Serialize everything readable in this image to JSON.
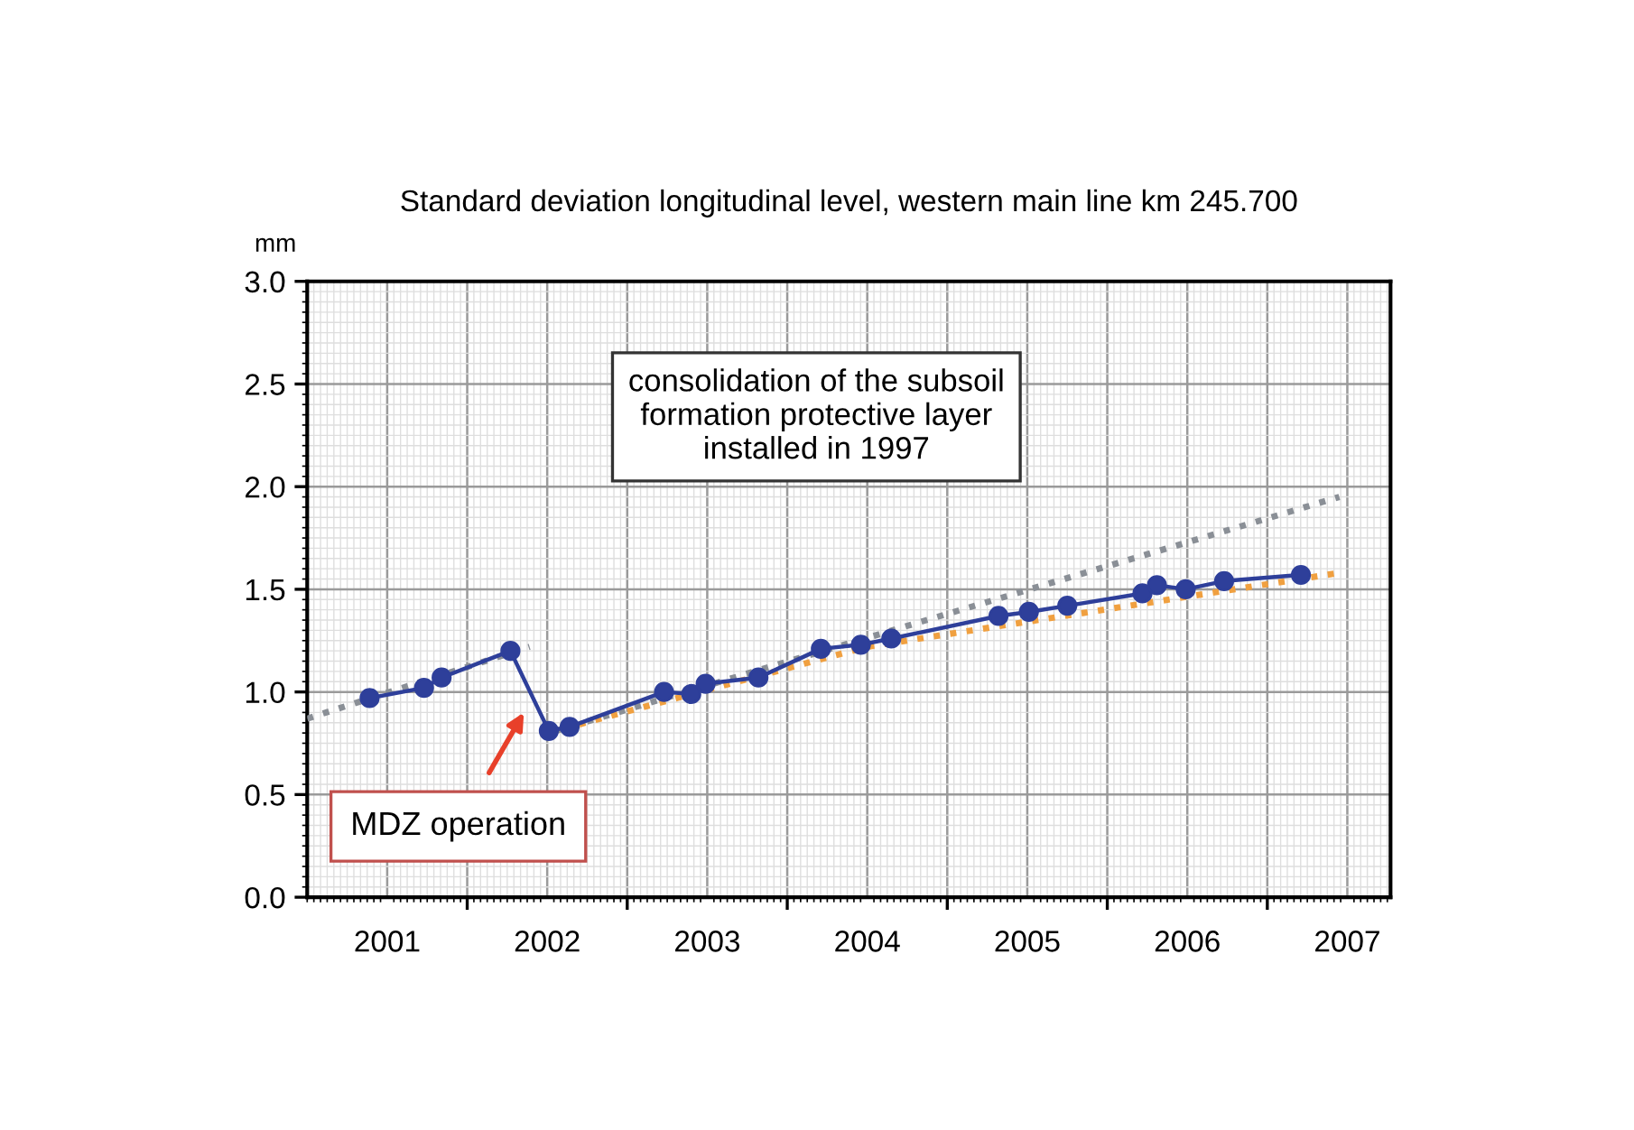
{
  "chart_data": {
    "type": "line",
    "title": "Standard deviation longitudinal level, western main line km 245.700",
    "ylabel": "mm",
    "xlim": [
      2001,
      2007.77
    ],
    "xticks": [
      {
        "value": 2002,
        "label": null
      },
      {
        "value": 2003,
        "label": null
      },
      {
        "value": 2004,
        "label": null
      },
      {
        "value": 2005,
        "label": null
      },
      {
        "value": 2006,
        "label": null
      },
      {
        "value": 2007,
        "label": null
      },
      {
        "value": 2001.5,
        "label": "2001"
      },
      {
        "value": 2002.5,
        "label": "2002"
      },
      {
        "value": 2003.5,
        "label": "2003"
      },
      {
        "value": 2004.5,
        "label": "2004"
      },
      {
        "value": 2005.5,
        "label": "2005"
      },
      {
        "value": 2006.5,
        "label": "2006"
      },
      {
        "value": 2007.5,
        "label": "2007"
      }
    ],
    "ylim": [
      0,
      3
    ],
    "yticks": [
      {
        "value": 0,
        "label": "0.0"
      },
      {
        "value": 0.5,
        "label": "0.5"
      },
      {
        "value": 1,
        "label": "1.0"
      },
      {
        "value": 1.5,
        "label": "1.5"
      },
      {
        "value": 2,
        "label": "2.0"
      },
      {
        "value": 2.5,
        "label": "2.5"
      },
      {
        "value": 3,
        "label": "3.0"
      }
    ],
    "grid": true,
    "series": [
      {
        "color": "#8a8f96",
        "line_style": "dotted",
        "marker": "none",
        "x": [
          2001.0,
          2002.39
        ],
        "values": [
          0.87,
          1.22
        ]
      },
      {
        "color": "#8a8f96",
        "line_style": "dotted",
        "marker": "none",
        "x": [
          2002.55,
          2007.45
        ],
        "values": [
          0.81,
          1.95
        ]
      },
      {
        "color": "#f0a040",
        "line_style": "dotted",
        "marker": "none",
        "x": [
          2002.5,
          2004.5,
          2007.45
        ],
        "values": [
          0.8,
          1.22,
          1.58
        ]
      },
      {
        "color": "#2e3f9a",
        "line_style": "solid",
        "marker": "circle",
        "x": [
          2001.39,
          2001.73,
          2001.84,
          2002.27,
          2002.51,
          2002.64,
          2003.23,
          2003.4,
          2003.49,
          2003.82,
          2004.21,
          2004.46,
          2004.65,
          2005.32,
          2005.51,
          2005.75,
          2006.22,
          2006.31,
          2006.49,
          2006.73,
          2007.21
        ],
        "values": [
          0.97,
          1.02,
          1.07,
          1.2,
          0.81,
          0.83,
          1.0,
          0.99,
          1.04,
          1.07,
          1.21,
          1.23,
          1.26,
          1.37,
          1.39,
          1.42,
          1.48,
          1.52,
          1.5,
          1.54,
          1.57
        ]
      }
    ],
    "annotations": [
      "consolidation of the subsoil\nformation protective layer\ninstalled in 1997",
      "MDZ operation"
    ]
  }
}
